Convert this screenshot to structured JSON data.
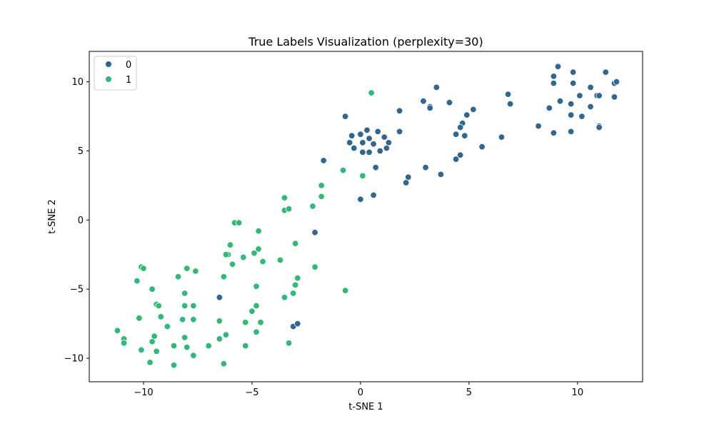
{
  "chart_data": {
    "type": "scatter",
    "title": "True Labels Visualization (perplexity=30)",
    "xlabel": "t-SNE 1",
    "ylabel": "t-SNE 2",
    "xlim": [
      -12.5,
      13.0
    ],
    "ylim": [
      -11.7,
      12.2
    ],
    "xticks": [
      -10,
      -5,
      0,
      5,
      10
    ],
    "yticks": [
      -10,
      -5,
      0,
      5,
      10
    ],
    "xtick_labels": [
      "−10",
      "−5",
      "0",
      "5",
      "10"
    ],
    "ytick_labels": [
      "−10",
      "−5",
      "0",
      "5",
      "10"
    ],
    "grid": false,
    "legend": {
      "placement": "top-left",
      "title": ""
    },
    "series": [
      {
        "name": "0",
        "color": "#31668d",
        "points": [
          [
            9.1,
            11.1
          ],
          [
            11.3,
            10.7
          ],
          [
            8.9,
            10.4
          ],
          [
            9.8,
            10.7
          ],
          [
            8.9,
            9.9
          ],
          [
            9.8,
            9.9
          ],
          [
            11.7,
            9.9
          ],
          [
            11.8,
            10.0
          ],
          [
            10.1,
            9.0
          ],
          [
            10.9,
            9.0
          ],
          [
            11.0,
            9.0
          ],
          [
            11.7,
            8.9
          ],
          [
            9.2,
            8.6
          ],
          [
            9.7,
            8.4
          ],
          [
            8.7,
            8.1
          ],
          [
            10.6,
            8.2
          ],
          [
            9.7,
            7.6
          ],
          [
            10.2,
            7.5
          ],
          [
            8.2,
            6.8
          ],
          [
            11.0,
            6.8
          ],
          [
            11.0,
            6.7
          ],
          [
            8.9,
            6.3
          ],
          [
            9.7,
            6.4
          ],
          [
            10.6,
            9.6
          ],
          [
            3.5,
            9.6
          ],
          [
            6.8,
            9.1
          ],
          [
            2.9,
            8.6
          ],
          [
            4.1,
            8.5
          ],
          [
            3.2,
            8.2
          ],
          [
            3.2,
            8.1
          ],
          [
            6.9,
            8.4
          ],
          [
            5.2,
            8.0
          ],
          [
            4.9,
            7.6
          ],
          [
            1.8,
            7.9
          ],
          [
            4.7,
            7.0
          ],
          [
            4.6,
            6.7
          ],
          [
            4.4,
            6.2
          ],
          [
            4.8,
            6.1
          ],
          [
            6.5,
            6.0
          ],
          [
            1.8,
            6.4
          ],
          [
            5.6,
            5.3
          ],
          [
            4.6,
            4.7
          ],
          [
            4.4,
            4.4
          ],
          [
            3.0,
            3.8
          ],
          [
            3.7,
            3.3
          ],
          [
            2.2,
            3.1
          ],
          [
            2.1,
            2.7
          ],
          [
            -0.7,
            7.5
          ],
          [
            -0.4,
            6.1
          ],
          [
            0.0,
            6.2
          ],
          [
            0.3,
            6.5
          ],
          [
            0.8,
            6.4
          ],
          [
            1.1,
            6.0
          ],
          [
            0.4,
            5.9
          ],
          [
            -0.5,
            5.6
          ],
          [
            0.1,
            5.6
          ],
          [
            0.6,
            5.5
          ],
          [
            1.3,
            5.6
          ],
          [
            -0.3,
            5.2
          ],
          [
            1.2,
            5.2
          ],
          [
            0.1,
            4.9
          ],
          [
            0.4,
            4.9
          ],
          [
            0.9,
            5.0
          ],
          [
            0.7,
            3.8
          ],
          [
            0.6,
            1.8
          ],
          [
            0.0,
            1.5
          ],
          [
            -1.7,
            4.3
          ],
          [
            -2.1,
            -0.9
          ],
          [
            -6.5,
            -5.6
          ],
          [
            -3.1,
            -7.7
          ],
          [
            -2.9,
            -7.5
          ]
        ]
      },
      {
        "name": "1",
        "color": "#35b779",
        "points": [
          [
            0.5,
            9.2
          ],
          [
            -0.8,
            3.6
          ],
          [
            0.1,
            3.2
          ],
          [
            -1.8,
            2.5
          ],
          [
            -1.8,
            1.7
          ],
          [
            -2.2,
            1.0
          ],
          [
            -3.5,
            1.6
          ],
          [
            -3.5,
            0.7
          ],
          [
            -3.3,
            0.8
          ],
          [
            -5.8,
            -0.2
          ],
          [
            -5.6,
            -0.2
          ],
          [
            -4.7,
            -0.8
          ],
          [
            -6.0,
            -1.8
          ],
          [
            -3.0,
            -1.7
          ],
          [
            -6.1,
            -2.5
          ],
          [
            -6.2,
            -2.5
          ],
          [
            -4.9,
            -2.4
          ],
          [
            -4.7,
            -2.1
          ],
          [
            -5.4,
            -2.7
          ],
          [
            -5.9,
            -3.2
          ],
          [
            -4.5,
            -3.0
          ],
          [
            -3.7,
            -2.9
          ],
          [
            -2.1,
            -3.4
          ],
          [
            -6.3,
            -4.1
          ],
          [
            -2.9,
            -4.2
          ],
          [
            -3.0,
            -4.7
          ],
          [
            -4.8,
            -4.8
          ],
          [
            -0.7,
            -5.1
          ],
          [
            -3.1,
            -5.3
          ],
          [
            -3.5,
            -5.6
          ],
          [
            -4.8,
            -6.2
          ],
          [
            -5.0,
            -6.6
          ],
          [
            -6.5,
            -7.3
          ],
          [
            -5.3,
            -7.4
          ],
          [
            -4.6,
            -7.4
          ],
          [
            -6.2,
            -8.3
          ],
          [
            -4.8,
            -8.1
          ],
          [
            -6.5,
            -8.6
          ],
          [
            -3.3,
            -8.9
          ],
          [
            -7.0,
            -9.1
          ],
          [
            -5.3,
            -9.1
          ],
          [
            -6.3,
            -10.4
          ],
          [
            -10.1,
            -3.4
          ],
          [
            -8.4,
            -4.1
          ],
          [
            -10.3,
            -4.4
          ],
          [
            -8.0,
            -3.5
          ],
          [
            -7.6,
            -3.7
          ],
          [
            -9.6,
            -5.0
          ],
          [
            -8.1,
            -5.3
          ],
          [
            -9.4,
            -6.1
          ],
          [
            -9.3,
            -6.2
          ],
          [
            -8.1,
            -6.2
          ],
          [
            -7.7,
            -6.2
          ],
          [
            -10.2,
            -7.1
          ],
          [
            -9.2,
            -7.0
          ],
          [
            -8.2,
            -7.2
          ],
          [
            -7.7,
            -7.2
          ],
          [
            -8.9,
            -7.7
          ],
          [
            -11.2,
            -8.0
          ],
          [
            -9.5,
            -8.4
          ],
          [
            -8.1,
            -8.5
          ],
          [
            -10.9,
            -8.6
          ],
          [
            -9.6,
            -8.8
          ],
          [
            -10.9,
            -8.9
          ],
          [
            -8.6,
            -9.1
          ],
          [
            -8.0,
            -9.2
          ],
          [
            -10.1,
            -9.4
          ],
          [
            -9.4,
            -9.5
          ],
          [
            -7.7,
            -9.8
          ],
          [
            -9.7,
            -10.3
          ],
          [
            -8.6,
            -10.5
          ],
          [
            -10.0,
            -3.5
          ]
        ]
      }
    ]
  }
}
